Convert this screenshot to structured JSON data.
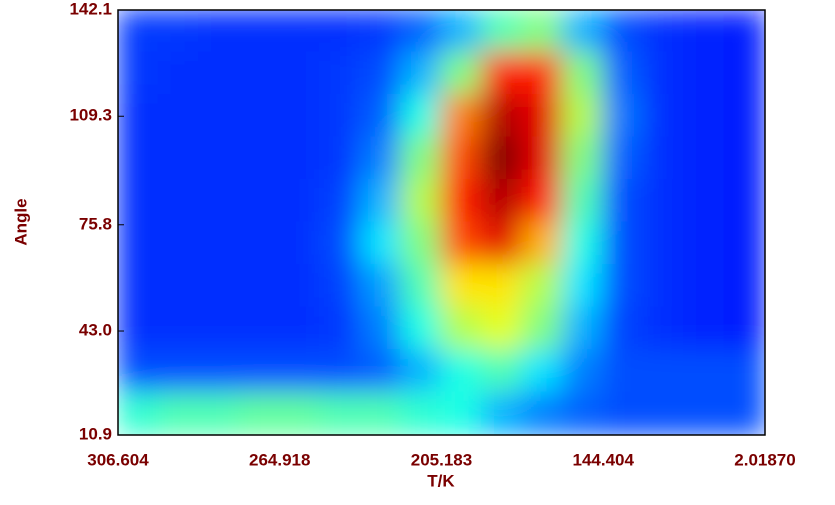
{
  "chart_data": {
    "type": "heatmap",
    "x_label": "T/K",
    "y_label": "Angle",
    "categories": [
      "306.604",
      "264.918",
      "205.183",
      "144.404",
      "2.01870"
    ],
    "ylim": [
      10.9,
      142.1
    ],
    "yticks": [
      10.9,
      {
        "value": 43,
        "label": "43.0"
      },
      75.8,
      109.3,
      142.1
    ],
    "zlim": [
      0,
      1
    ],
    "z": [
      [
        0.18,
        0.18,
        0.17,
        0.17,
        0.17,
        0.17,
        0.18,
        0.22,
        0.3,
        0.45,
        0.5,
        0.3,
        0.2,
        0.17,
        0.16,
        0.15
      ],
      [
        0.18,
        0.17,
        0.17,
        0.17,
        0.17,
        0.18,
        0.2,
        0.3,
        0.5,
        0.85,
        0.85,
        0.5,
        0.22,
        0.17,
        0.16,
        0.15
      ],
      [
        0.17,
        0.17,
        0.17,
        0.17,
        0.17,
        0.18,
        0.22,
        0.4,
        0.75,
        0.95,
        0.9,
        0.55,
        0.24,
        0.17,
        0.16,
        0.15
      ],
      [
        0.17,
        0.17,
        0.17,
        0.17,
        0.17,
        0.18,
        0.25,
        0.5,
        0.8,
        1.0,
        0.9,
        0.5,
        0.22,
        0.17,
        0.16,
        0.15
      ],
      [
        0.17,
        0.17,
        0.17,
        0.17,
        0.17,
        0.19,
        0.3,
        0.55,
        0.85,
        0.95,
        0.85,
        0.45,
        0.2,
        0.17,
        0.16,
        0.15
      ],
      [
        0.17,
        0.17,
        0.17,
        0.17,
        0.17,
        0.2,
        0.35,
        0.5,
        0.8,
        0.9,
        0.7,
        0.4,
        0.2,
        0.17,
        0.16,
        0.15
      ],
      [
        0.17,
        0.17,
        0.17,
        0.17,
        0.17,
        0.19,
        0.28,
        0.45,
        0.65,
        0.65,
        0.55,
        0.35,
        0.2,
        0.17,
        0.16,
        0.15
      ],
      [
        0.17,
        0.17,
        0.17,
        0.17,
        0.17,
        0.18,
        0.25,
        0.4,
        0.55,
        0.6,
        0.5,
        0.3,
        0.19,
        0.17,
        0.16,
        0.15
      ],
      [
        0.2,
        0.2,
        0.2,
        0.2,
        0.2,
        0.2,
        0.22,
        0.3,
        0.4,
        0.45,
        0.35,
        0.25,
        0.2,
        0.2,
        0.2,
        0.2
      ],
      [
        0.42,
        0.45,
        0.45,
        0.47,
        0.47,
        0.45,
        0.45,
        0.42,
        0.4,
        0.3,
        0.25,
        0.22,
        0.2,
        0.2,
        0.2,
        0.2
      ]
    ]
  }
}
